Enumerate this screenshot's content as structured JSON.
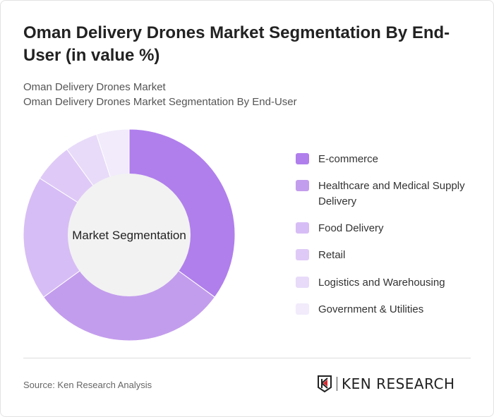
{
  "title": "Oman Delivery Drones Market Segmentation By End-User (in value %)",
  "subtitle1": "Oman Delivery Drones Market",
  "subtitle2": "Oman Delivery Drones Market Segmentation By End-User",
  "source": "Source: Ken Research Analysis",
  "logo_text": "KEN RESEARCH",
  "chart_data": {
    "type": "pie",
    "variant": "donut",
    "center_label": "Market Segmentation",
    "legend_position": "right",
    "categories": [
      "E-commerce",
      "Healthcare and Medical Supply Delivery",
      "Food Delivery",
      "Retail",
      "Logistics and Warehousing",
      "Government & Utilities"
    ],
    "values": [
      35,
      30,
      19,
      6,
      5,
      5
    ],
    "colors": [
      "#b07fec",
      "#c39ded",
      "#d7bdf5",
      "#dfcaf7",
      "#e8dbf9",
      "#f1ebfb"
    ]
  }
}
